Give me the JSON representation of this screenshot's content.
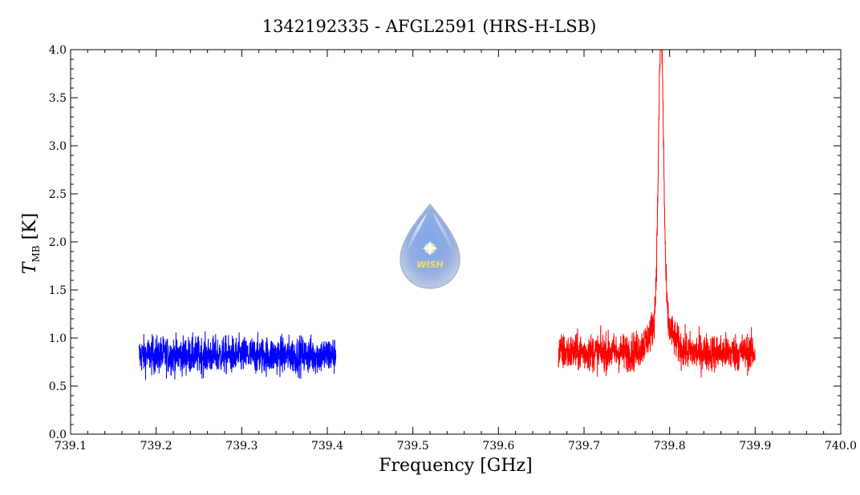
{
  "chart_data": {
    "type": "line",
    "title": "1342192335 - AFGL2591 (HRS-H-LSB)",
    "xlabel": "Frequency [GHz]",
    "ylabel": {
      "symbol": "T",
      "subscript": "MB",
      "unit": "[K]"
    },
    "xlim": [
      739.1,
      740.0
    ],
    "ylim": [
      0.0,
      4.0
    ],
    "x_ticks": [
      "739.1",
      "739.2",
      "739.3",
      "739.4",
      "739.5",
      "739.6",
      "739.7",
      "739.8",
      "739.9",
      "740.0"
    ],
    "y_ticks": [
      "0.0",
      "0.5",
      "1.0",
      "1.5",
      "2.0",
      "2.5",
      "3.0",
      "3.5",
      "4.0"
    ],
    "grid": false,
    "logo": {
      "text": "WISH"
    },
    "series": [
      {
        "color": "#0000ff",
        "x_range": [
          739.18,
          739.41
        ],
        "baseline": 0.82,
        "noise_amplitude": 0.33,
        "peak": null
      },
      {
        "color": "#ff0000",
        "x_range": [
          739.67,
          739.9
        ],
        "baseline": 0.85,
        "noise_amplitude": 0.33,
        "peak": {
          "center": 739.79,
          "height": 3.8,
          "width": 0.003
        }
      }
    ]
  }
}
